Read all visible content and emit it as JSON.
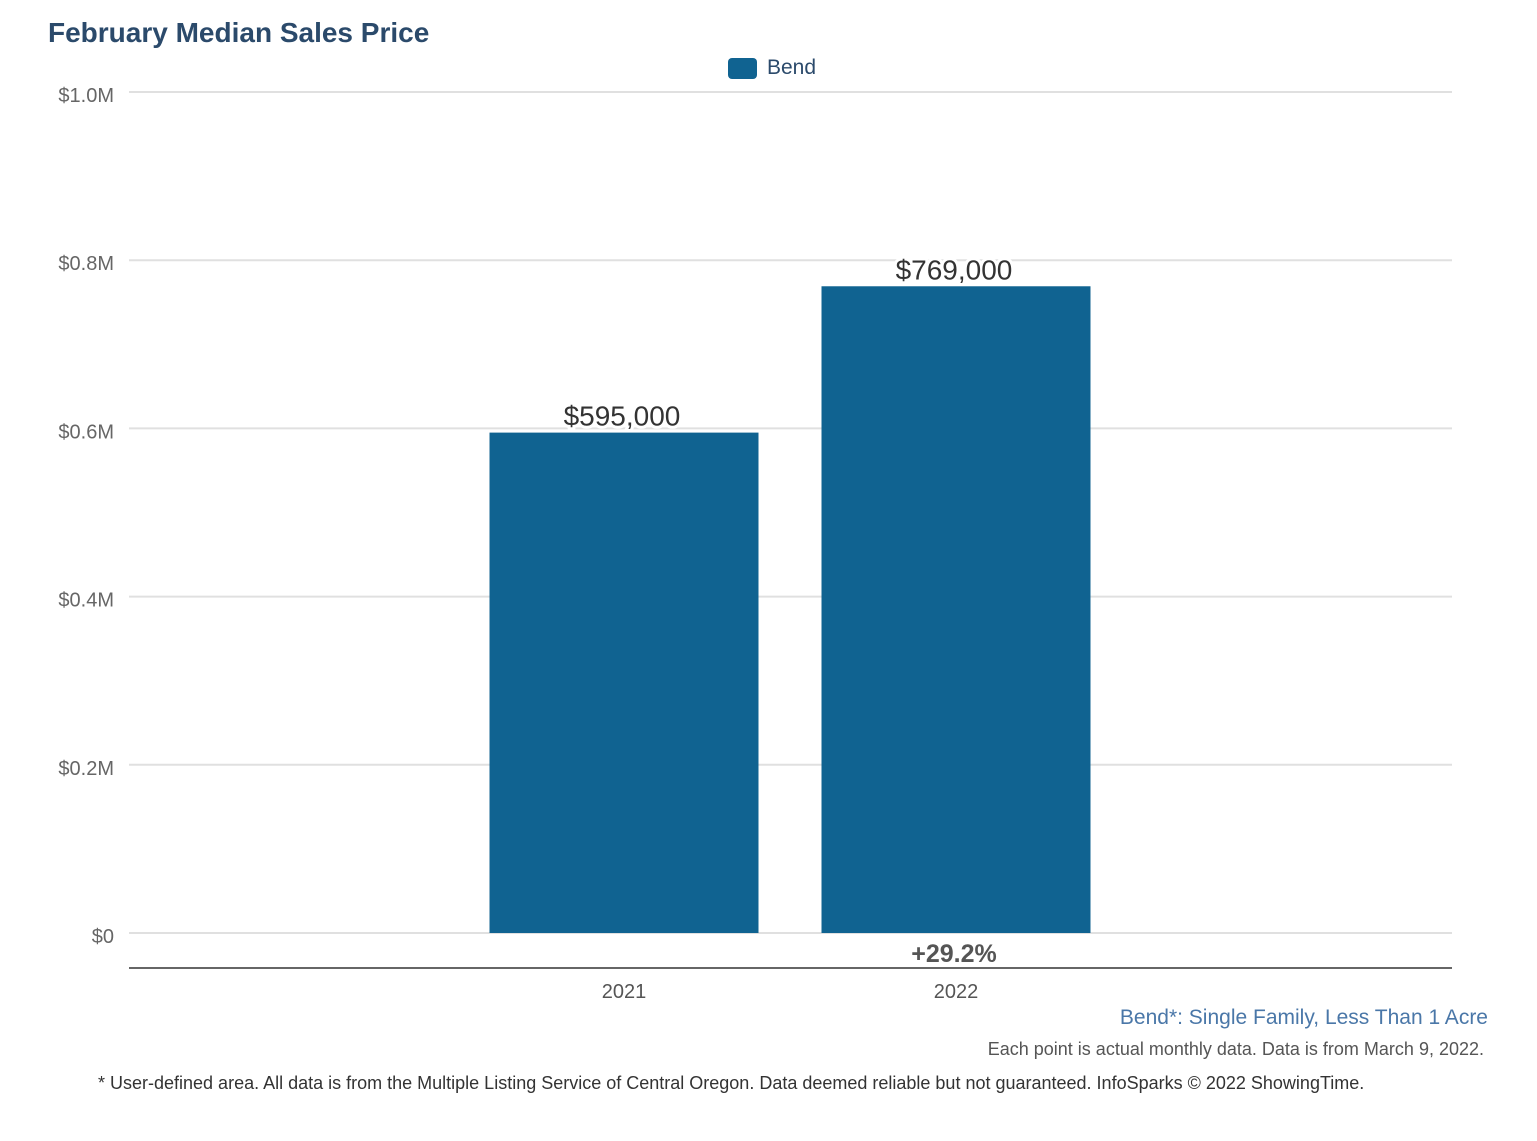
{
  "chart_data": {
    "type": "bar",
    "title": "February Median Sales Price",
    "categories": [
      "2021",
      "2022"
    ],
    "series": [
      {
        "name": "Bend",
        "values": [
          595000,
          769000
        ],
        "color": "#106391"
      }
    ],
    "data_labels": [
      "$595,000",
      "$769,000"
    ],
    "change_label": "+29.2%",
    "ylim": [
      0,
      1000000
    ],
    "yticks": [
      0,
      200000,
      400000,
      600000,
      800000,
      1000000
    ],
    "ytick_labels": [
      "$0",
      "$0.2M",
      "$0.4M",
      "$0.6M",
      "$0.8M",
      "$1.0M"
    ],
    "xlabel": "",
    "ylabel": "",
    "grid": true,
    "legend": "top-center"
  },
  "subtitle": "Bend*: Single Family, Less Than 1 Acre",
  "note": "Each point is actual monthly data. Data is from March 9, 2022.",
  "footer": "* User-defined area. All data is from the Multiple Listing Service of Central Oregon. Data deemed reliable but not guaranteed. InfoSparks © 2022 ShowingTime."
}
